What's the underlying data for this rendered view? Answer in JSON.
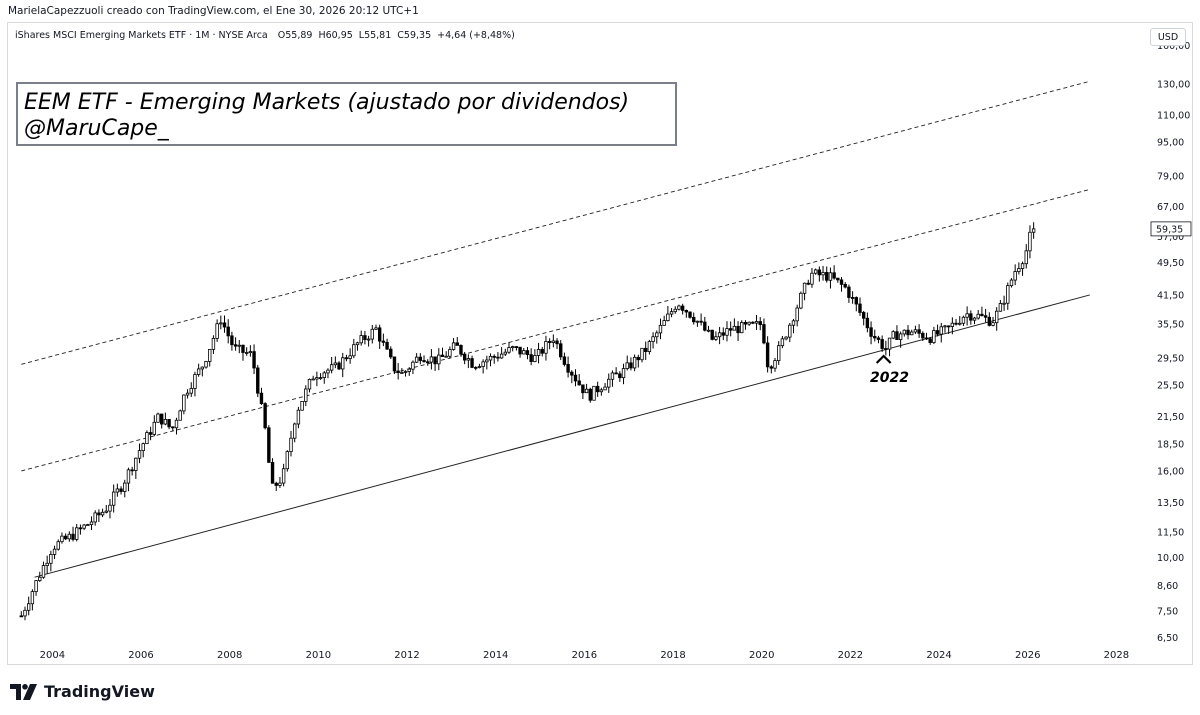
{
  "header": {
    "credit": "MarielaCapezzuoli creado con TradingView.com, el Ene 30, 2026 20:12 UTC+1"
  },
  "symbol": {
    "name": "iShares MSCI Emerging Markets ETF · 1M · NYSE Arca",
    "open": "O55,89",
    "high": "H60,95",
    "low": "L55,81",
    "close": "C59,35",
    "change": "+4,64 (+8,48%)"
  },
  "currency": "USD",
  "title": {
    "line1": "EEM ETF - Emerging Markets (ajustado por dividendos)",
    "line2": "@MaruCape_"
  },
  "annotation": "2022",
  "logo_text": "TradingView",
  "colors": {
    "candle_up": "#ffffff",
    "candle_down": "#000000",
    "candle_border": "#000000",
    "last_price_bg": "#ffffff"
  },
  "chart_data": {
    "type": "candlestick",
    "x_axis": {
      "ticks": [
        "2004",
        "2006",
        "2008",
        "2010",
        "2012",
        "2014",
        "2016",
        "2018",
        "2020",
        "2022",
        "2024",
        "2026",
        "2028"
      ],
      "range": [
        2003.0,
        2028.6
      ]
    },
    "y_axis": {
      "scale": "log",
      "ticks": [
        "160,00",
        "130,00",
        "110,00",
        "95,00",
        "79,00",
        "67,00",
        "57,00",
        "49,50",
        "41,50",
        "35,50",
        "29,50",
        "25,50",
        "21,50",
        "18,50",
        "16,00",
        "13,50",
        "11,50",
        "10,00",
        "8,60",
        "7,50",
        "6,50"
      ],
      "tick_values": [
        160,
        130,
        110,
        95,
        79,
        67,
        57,
        49.5,
        41.5,
        35.5,
        29.5,
        25.5,
        21.5,
        18.5,
        16,
        13.5,
        11.5,
        10,
        8.6,
        7.5,
        6.5
      ],
      "range": [
        6.2,
        180
      ]
    },
    "last_price": {
      "label": "59,35",
      "value": 59.35
    },
    "price_path": [
      [
        2003.3,
        7.3
      ],
      [
        2003.6,
        8.6
      ],
      [
        2004.0,
        10.6
      ],
      [
        2004.4,
        11.2
      ],
      [
        2004.8,
        12.0
      ],
      [
        2005.2,
        13.0
      ],
      [
        2005.6,
        15.0
      ],
      [
        2006.0,
        18.2
      ],
      [
        2006.4,
        21.5
      ],
      [
        2006.7,
        20.0
      ],
      [
        2007.0,
        24.5
      ],
      [
        2007.4,
        28.5
      ],
      [
        2007.8,
        36.5
      ],
      [
        2008.1,
        31.0
      ],
      [
        2008.5,
        30.0
      ],
      [
        2008.8,
        20.0
      ],
      [
        2008.95,
        14.5
      ],
      [
        2009.2,
        15.5
      ],
      [
        2009.5,
        22.0
      ],
      [
        2009.9,
        27.0
      ],
      [
        2010.4,
        28.0
      ],
      [
        2010.9,
        32.0
      ],
      [
        2011.3,
        34.5
      ],
      [
        2011.7,
        28.0
      ],
      [
        2011.9,
        27.0
      ],
      [
        2012.3,
        30.0
      ],
      [
        2012.7,
        29.0
      ],
      [
        2013.1,
        31.5
      ],
      [
        2013.5,
        28.5
      ],
      [
        2013.9,
        29.5
      ],
      [
        2014.4,
        31.0
      ],
      [
        2014.9,
        29.5
      ],
      [
        2015.3,
        33.0
      ],
      [
        2015.6,
        28.5
      ],
      [
        2015.9,
        25.5
      ],
      [
        2016.1,
        24.0
      ],
      [
        2016.5,
        26.0
      ],
      [
        2016.9,
        27.5
      ],
      [
        2017.4,
        31.0
      ],
      [
        2017.9,
        37.0
      ],
      [
        2018.1,
        40.0
      ],
      [
        2018.5,
        36.5
      ],
      [
        2018.9,
        32.5
      ],
      [
        2019.3,
        34.5
      ],
      [
        2019.8,
        35.0
      ],
      [
        2020.0,
        35.5
      ],
      [
        2020.15,
        28.0
      ],
      [
        2020.4,
        31.0
      ],
      [
        2020.8,
        39.0
      ],
      [
        2021.1,
        46.5
      ],
      [
        2021.5,
        46.0
      ],
      [
        2021.9,
        43.0
      ],
      [
        2022.2,
        38.0
      ],
      [
        2022.5,
        33.5
      ],
      [
        2022.8,
        31.0
      ],
      [
        2023.0,
        33.5
      ],
      [
        2023.4,
        34.0
      ],
      [
        2023.8,
        33.0
      ],
      [
        2024.2,
        34.5
      ],
      [
        2024.6,
        37.5
      ],
      [
        2024.9,
        37.0
      ],
      [
        2025.2,
        36.0
      ],
      [
        2025.4,
        39.0
      ],
      [
        2025.7,
        47.0
      ],
      [
        2025.95,
        52.0
      ],
      [
        2026.1,
        59.35
      ]
    ],
    "lines": [
      {
        "style": "solid",
        "from": [
          2003.6,
          9.0
        ],
        "to": [
          2027.4,
          41.5
        ]
      },
      {
        "style": "dashed",
        "from": [
          2003.3,
          16.0
        ],
        "to": [
          2027.4,
          73.5
        ]
      },
      {
        "style": "dashed",
        "from": [
          2003.3,
          28.5
        ],
        "to": [
          2027.4,
          132.0
        ]
      }
    ]
  }
}
